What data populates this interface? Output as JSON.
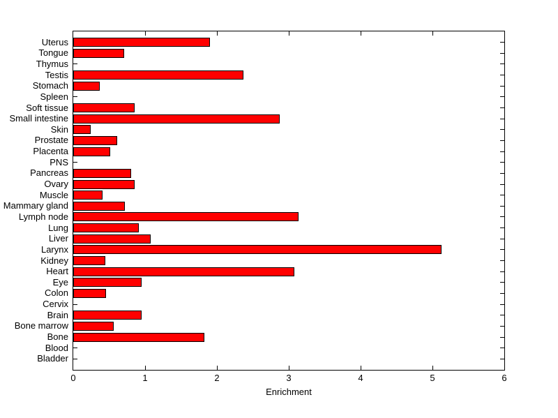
{
  "chart_data": {
    "type": "bar",
    "orientation": "horizontal",
    "title": "",
    "xlabel": "Enrichment",
    "ylabel": "",
    "categories_top_to_bottom": [
      "Uterus",
      "Tongue",
      "Thymus",
      "Testis",
      "Stomach",
      "Spleen",
      "Soft tissue",
      "Small intestine",
      "Skin",
      "Prostate",
      "Placenta",
      "PNS",
      "Pancreas",
      "Ovary",
      "Muscle",
      "Mammary gland",
      "Lymph node",
      "Lung",
      "Liver",
      "Larynx",
      "Kidney",
      "Heart",
      "Eye",
      "Colon",
      "Cervix",
      "Brain",
      "Bone marrow",
      "Bone",
      "Blood",
      "Bladder"
    ],
    "values": [
      1.9,
      0.71,
      0,
      2.37,
      0.37,
      0,
      0.85,
      2.87,
      0.24,
      0.61,
      0.51,
      0,
      0.81,
      0.85,
      0.41,
      0.72,
      3.14,
      0.91,
      1.08,
      5.13,
      0.45,
      3.08,
      0.95,
      0.46,
      0,
      0.95,
      0.56,
      1.83,
      0,
      0
    ],
    "xlim": [
      0,
      6
    ],
    "xticks": [
      0,
      1,
      2,
      3,
      4,
      5,
      6
    ],
    "grid": false,
    "legend": false,
    "bar_color": "#FF0000",
    "bar_edge_color": "#000000",
    "axis_color": "#000000",
    "background_color": "#FFFFFF"
  }
}
